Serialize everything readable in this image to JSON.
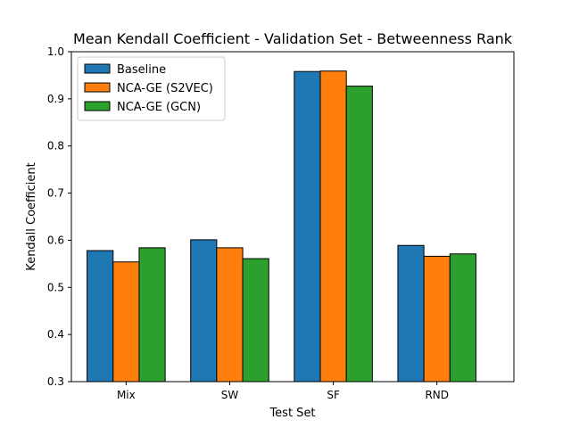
{
  "chart_data": {
    "type": "bar",
    "title": "Mean Kendall Coefficient - Validation Set - Betweenness Rank",
    "xlabel": "Test Set",
    "ylabel": "Kendall Coefficient",
    "ylim": [
      0.3,
      1.0
    ],
    "yticks": [
      "0.3",
      "0.4",
      "0.5",
      "0.6",
      "0.7",
      "0.8",
      "0.9",
      "1.0"
    ],
    "categories": [
      "Mix",
      "SW",
      "SF",
      "RND"
    ],
    "series": [
      {
        "name": "Baseline",
        "color": "#1f77b4",
        "values": [
          0.578,
          0.601,
          0.958,
          0.589
        ]
      },
      {
        "name": "NCA-GE (S2VEC)",
        "color": "#ff7f0e",
        "values": [
          0.554,
          0.584,
          0.959,
          0.566
        ]
      },
      {
        "name": "NCA-GE (GCN)",
        "color": "#2ca02c",
        "values": [
          0.584,
          0.561,
          0.927,
          0.571
        ]
      }
    ],
    "legend_position": "top-left"
  }
}
